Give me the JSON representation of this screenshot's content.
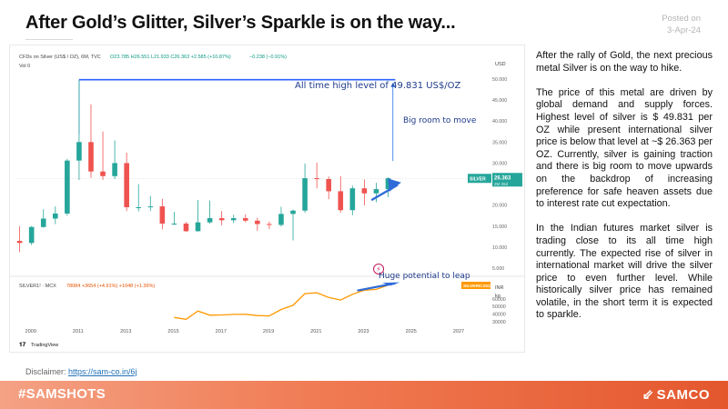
{
  "header": {
    "title": "After Gold’s Glitter, Silver’s Sparkle is on the way...",
    "posted_label": "Posted on",
    "posted_date": "3-Apr-24"
  },
  "body": {
    "paragraphs": [
      "After the rally of Gold, the next precious metal Silver is on the way to hike.",
      "The price of this metal are driven by global demand and supply forces. Highest level of silver is $ 49.831 per OZ while present international silver price is below that level at ~$ 26.363 per OZ. Currently, silver is gaining traction and there is big room to move upwards on the backdrop of increasing preference for safe heaven assets due to interest rate cut expectation.",
      "In the Indian futures market silver is trading close to its all time high currently. The expected rise of silver in international market will drive the silver price to even further level. While historically silver price has remained volatile, in the short term it is expected to sparkle."
    ]
  },
  "disclaimer": {
    "label": "Disclaimer:",
    "link": "https://sam-co.in/6j"
  },
  "footer": {
    "hashtag": "#SAMSHOTS",
    "brand": "SAMCO",
    "brand_icon": "samco-arrow-logo"
  },
  "colors": {
    "up": "#26a69a",
    "down": "#ef5350",
    "ath_line": "#2962ff",
    "mcx_line": "#ff9800",
    "footer_start": "#f4a184",
    "footer_end": "#e4572e"
  },
  "chart_data": [
    {
      "type": "candlestick",
      "header": "CFDs on Silver (US$ / OZ), 6M, TVC",
      "ohlc_label": "O23.785 H26.551 L21.933 C26.363 +2.585 (+10.87%)",
      "vol_label": "Vol 0",
      "vol_value": "−0.238 (−0.91%)",
      "currency": "USD",
      "y_ticks": [
        5,
        10,
        15,
        20,
        25,
        30,
        35,
        40,
        45,
        50
      ],
      "y_tick_labels": [
        "5.000",
        "10.000",
        "15.000",
        "20.000",
        "25.000",
        "30.000",
        "35.000",
        "40.000",
        "45.000",
        "50.000"
      ],
      "ylim": [
        3.5,
        51.5
      ],
      "x_ticks": [
        "2009",
        "2011",
        "2013",
        "2015",
        "2017",
        "2019",
        "2021",
        "2023",
        "2025",
        "2027"
      ],
      "candles": [
        {
          "t": 2008.5,
          "o": 11.5,
          "h": 15.0,
          "l": 8.8,
          "c": 11.0
        },
        {
          "t": 2009.0,
          "o": 11.0,
          "h": 15.0,
          "l": 10.5,
          "c": 14.8
        },
        {
          "t": 2009.5,
          "o": 14.8,
          "h": 19.0,
          "l": 14.6,
          "c": 16.8
        },
        {
          "t": 2010.0,
          "o": 16.8,
          "h": 19.7,
          "l": 15.5,
          "c": 18.0
        },
        {
          "t": 2010.5,
          "o": 18.0,
          "h": 31.0,
          "l": 17.5,
          "c": 30.6
        },
        {
          "t": 2011.0,
          "o": 30.6,
          "h": 49.8,
          "l": 26.0,
          "c": 35.0
        },
        {
          "t": 2011.5,
          "o": 35.0,
          "h": 44.0,
          "l": 26.5,
          "c": 28.0
        },
        {
          "t": 2012.0,
          "o": 28.0,
          "h": 37.5,
          "l": 26.0,
          "c": 26.9
        },
        {
          "t": 2012.5,
          "o": 26.9,
          "h": 35.4,
          "l": 26.2,
          "c": 30.0
        },
        {
          "t": 2013.0,
          "o": 30.0,
          "h": 32.5,
          "l": 18.6,
          "c": 19.5
        },
        {
          "t": 2013.5,
          "o": 19.5,
          "h": 25.0,
          "l": 18.5,
          "c": 19.5
        },
        {
          "t": 2014.0,
          "o": 19.5,
          "h": 22.2,
          "l": 18.6,
          "c": 19.7
        },
        {
          "t": 2014.5,
          "o": 19.7,
          "h": 21.5,
          "l": 14.2,
          "c": 15.6
        },
        {
          "t": 2015.0,
          "o": 15.6,
          "h": 18.4,
          "l": 15.3,
          "c": 15.6
        },
        {
          "t": 2015.5,
          "o": 15.6,
          "h": 16.0,
          "l": 13.6,
          "c": 13.8
        },
        {
          "t": 2016.0,
          "o": 13.8,
          "h": 21.2,
          "l": 13.7,
          "c": 15.9
        },
        {
          "t": 2016.5,
          "o": 15.9,
          "h": 21.1,
          "l": 15.6,
          "c": 16.9
        },
        {
          "t": 2017.0,
          "o": 16.9,
          "h": 18.6,
          "l": 15.2,
          "c": 16.4
        },
        {
          "t": 2017.5,
          "o": 16.4,
          "h": 17.7,
          "l": 15.7,
          "c": 16.9
        },
        {
          "t": 2018.0,
          "o": 16.9,
          "h": 17.8,
          "l": 15.9,
          "c": 16.3
        },
        {
          "t": 2018.5,
          "o": 16.3,
          "h": 17.0,
          "l": 13.9,
          "c": 15.5
        },
        {
          "t": 2019.0,
          "o": 15.5,
          "h": 16.1,
          "l": 14.3,
          "c": 15.3
        },
        {
          "t": 2019.5,
          "o": 15.3,
          "h": 19.6,
          "l": 14.9,
          "c": 17.9
        },
        {
          "t": 2020.0,
          "o": 17.9,
          "h": 18.9,
          "l": 11.6,
          "c": 18.7
        },
        {
          "t": 2020.5,
          "o": 18.7,
          "h": 29.9,
          "l": 18.2,
          "c": 26.4
        },
        {
          "t": 2021.0,
          "o": 26.4,
          "h": 30.1,
          "l": 24.0,
          "c": 26.2
        },
        {
          "t": 2021.5,
          "o": 26.2,
          "h": 26.8,
          "l": 21.4,
          "c": 23.3
        },
        {
          "t": 2022.0,
          "o": 23.3,
          "h": 26.9,
          "l": 18.2,
          "c": 18.8
        },
        {
          "t": 2022.5,
          "o": 18.8,
          "h": 24.6,
          "l": 17.6,
          "c": 24.0
        },
        {
          "t": 2023.0,
          "o": 24.0,
          "h": 26.1,
          "l": 19.9,
          "c": 22.8
        },
        {
          "t": 2023.5,
          "o": 22.8,
          "h": 25.3,
          "l": 20.7,
          "c": 23.8
        },
        {
          "t": 2024.0,
          "o": 23.8,
          "h": 26.6,
          "l": 21.9,
          "c": 26.4
        }
      ],
      "price_tag": {
        "label": "SILVER",
        "value": "26.363",
        "sub": "2M 26d"
      },
      "ath_level": 49.831,
      "annotations": [
        "All time high level of 49.831 US$/OZ",
        "Big room to move"
      ]
    },
    {
      "type": "line",
      "header": "SILVER1! · MCX",
      "values_label": "78084 +3654 (+4.91%) +1048 (+1.36%)",
      "currency": "INR",
      "unit": "kg",
      "y_ticks": [
        30000,
        40000,
        50000,
        60000
      ],
      "ylim": [
        25000,
        85000
      ],
      "x": [
        2015.0,
        2015.5,
        2016.0,
        2016.5,
        2017.0,
        2017.5,
        2018.0,
        2018.5,
        2019.0,
        2019.5,
        2020.0,
        2020.5,
        2021.0,
        2021.5,
        2022.0,
        2022.5,
        2023.0,
        2023.5,
        2024.0
      ],
      "y": [
        35500,
        33000,
        44000,
        38500,
        38800,
        39500,
        39600,
        38000,
        37500,
        46000,
        51500,
        67000,
        68000,
        62000,
        58500,
        66000,
        71500,
        72500,
        78084
      ],
      "price_tag": {
        "label": "SILVERIC2024"
      },
      "annotations": [
        "Huge potential to leap"
      ]
    }
  ],
  "chart_footer": {
    "brand": "TradingView"
  }
}
